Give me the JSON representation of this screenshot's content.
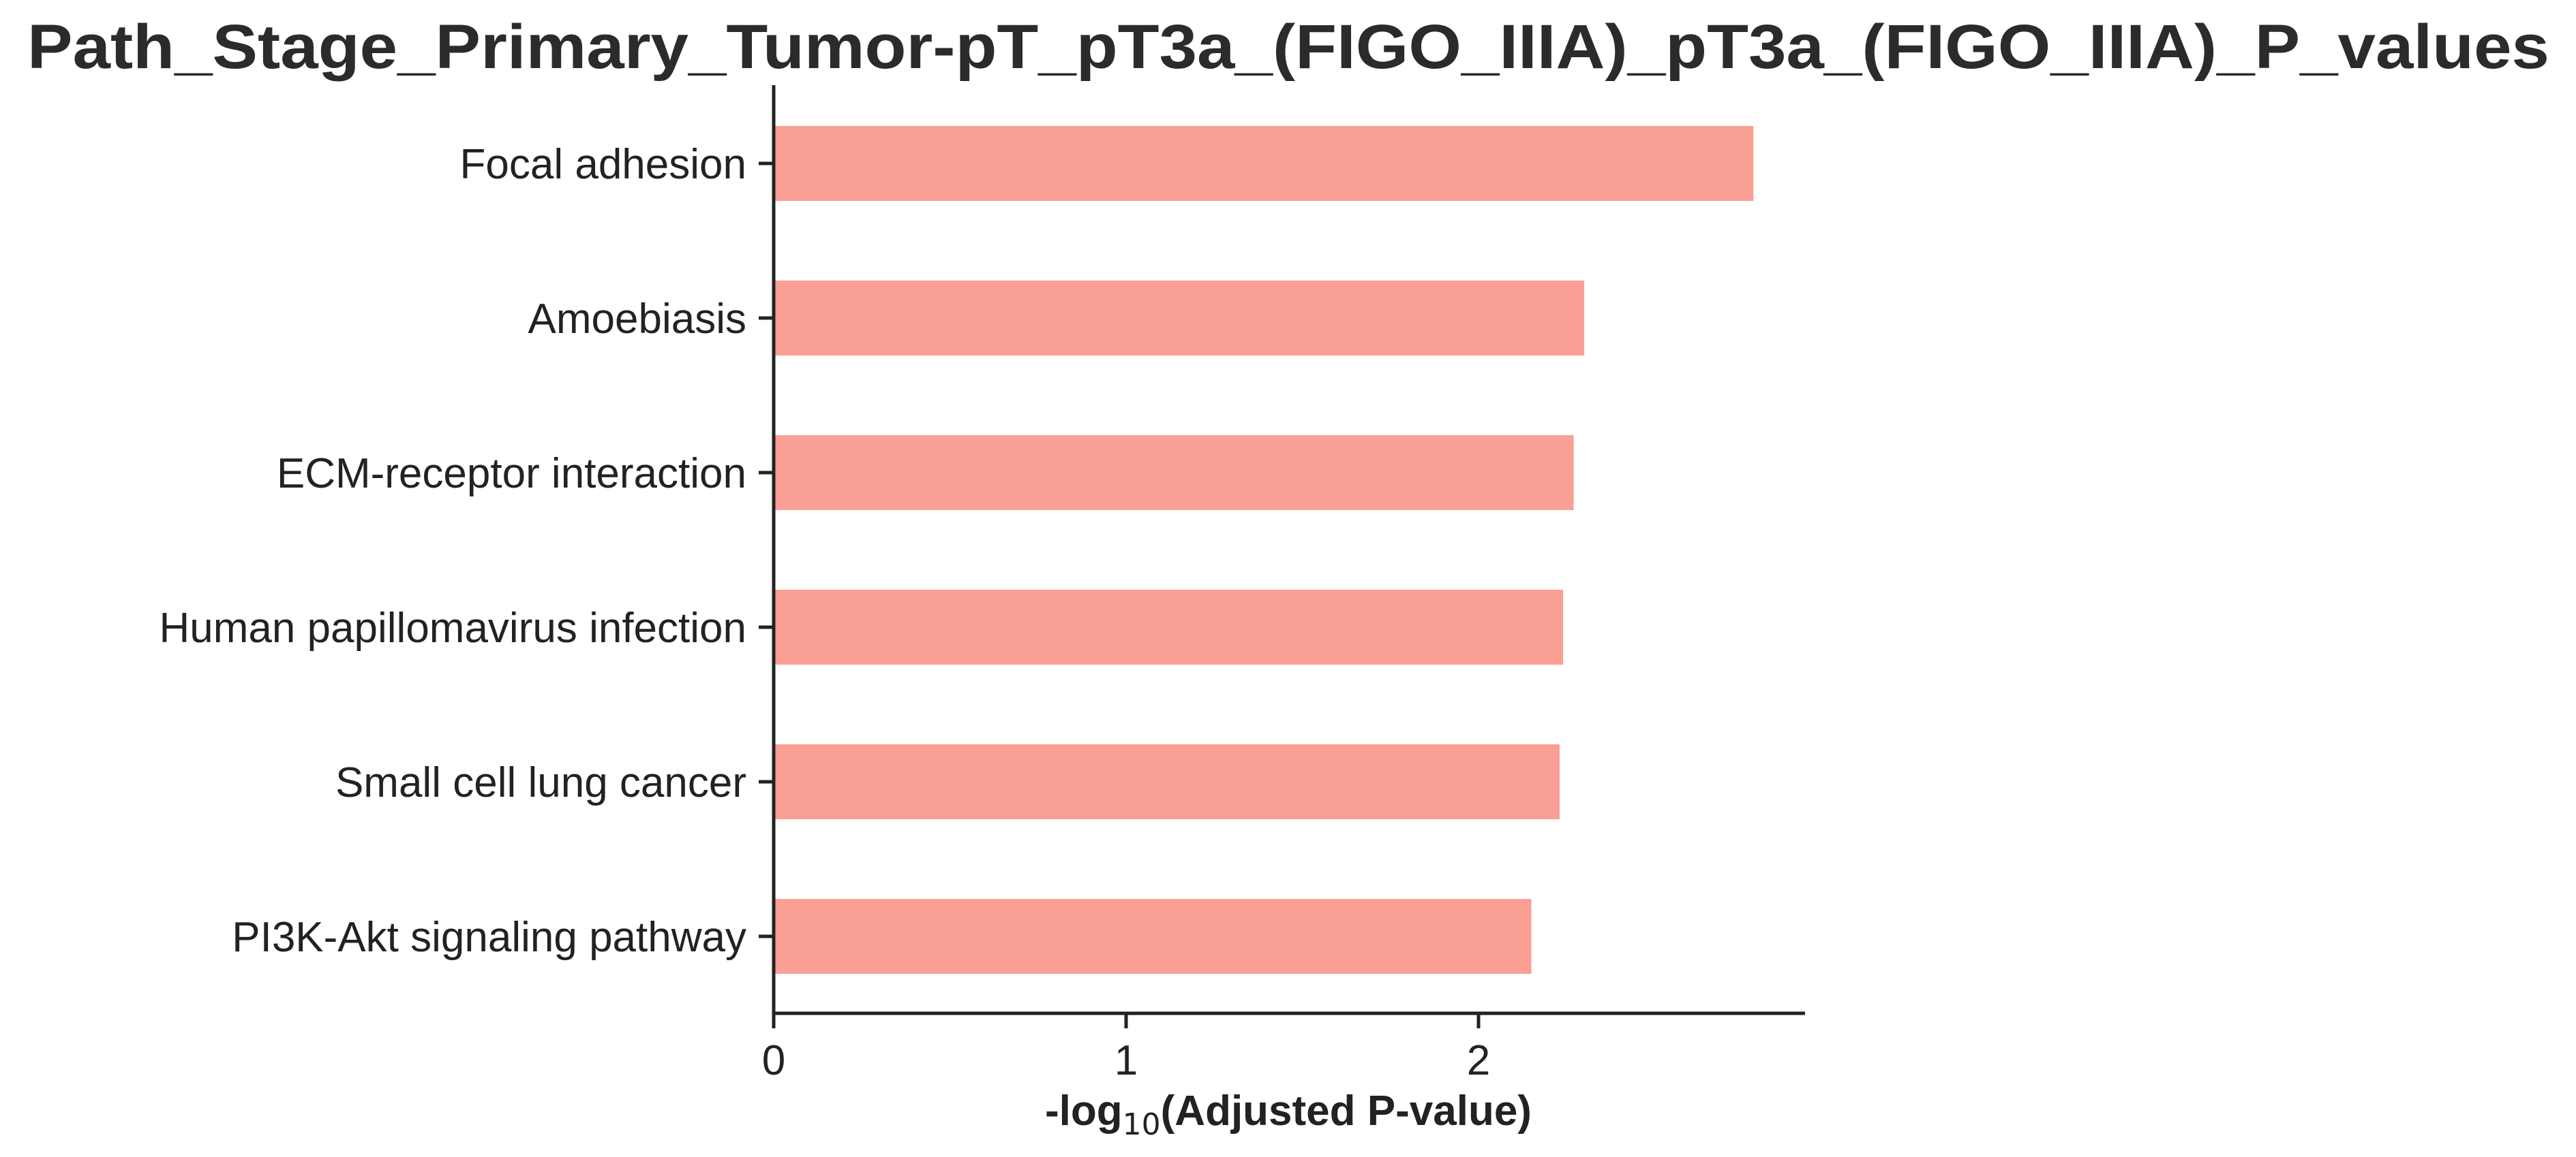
{
  "chart_data": {
    "type": "bar",
    "orientation": "horizontal",
    "title": "Path_Stage_Primary_Tumor-pT_pT3a_(FIGO_IIIA)_pT3a_(FIGO_IIIA)_P_values",
    "categories": [
      "Focal adhesion",
      "Amoebiasis",
      "ECM-receptor interaction",
      "Human papillomavirus infection",
      "Small cell lung cancer",
      "PI3K-Akt signaling pathway"
    ],
    "values": [
      2.78,
      2.3,
      2.27,
      2.24,
      2.23,
      2.15
    ],
    "xlabel": {
      "prefix": "-log",
      "subscript": "10",
      "suffix": "(Adjusted P-value)"
    },
    "xticks": [
      "0",
      "1",
      "2"
    ],
    "xlim": [
      0,
      2.92
    ],
    "grid": false,
    "legend": "none",
    "bar_color": "#fa9f94",
    "axis_color": "#222222"
  }
}
